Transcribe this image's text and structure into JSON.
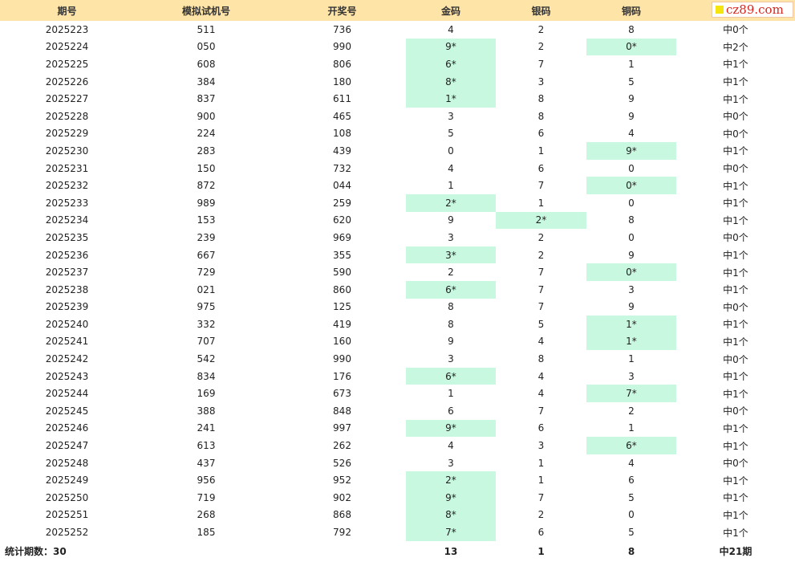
{
  "headers": {
    "period": "期号",
    "sim": "模拟试机号",
    "draw": "开奖号",
    "gold": "金码",
    "silver": "银码",
    "copper": "铜码"
  },
  "logo": {
    "text": "cz89.com"
  },
  "rows": [
    {
      "period": "2025223",
      "sim": "511",
      "draw": "736",
      "gold": "4",
      "silver": "2",
      "copper": "8",
      "result": "中0个",
      "hit": ""
    },
    {
      "period": "2025224",
      "sim": "050",
      "draw": "990",
      "gold": "9*",
      "silver": "2",
      "copper": "0*",
      "result": "中2个",
      "hit": "gc"
    },
    {
      "period": "2025225",
      "sim": "608",
      "draw": "806",
      "gold": "6*",
      "silver": "7",
      "copper": "1",
      "result": "中1个",
      "hit": "g"
    },
    {
      "period": "2025226",
      "sim": "384",
      "draw": "180",
      "gold": "8*",
      "silver": "3",
      "copper": "5",
      "result": "中1个",
      "hit": "g"
    },
    {
      "period": "2025227",
      "sim": "837",
      "draw": "611",
      "gold": "1*",
      "silver": "8",
      "copper": "9",
      "result": "中1个",
      "hit": "g"
    },
    {
      "period": "2025228",
      "sim": "900",
      "draw": "465",
      "gold": "3",
      "silver": "8",
      "copper": "9",
      "result": "中0个",
      "hit": ""
    },
    {
      "period": "2025229",
      "sim": "224",
      "draw": "108",
      "gold": "5",
      "silver": "6",
      "copper": "4",
      "result": "中0个",
      "hit": ""
    },
    {
      "period": "2025230",
      "sim": "283",
      "draw": "439",
      "gold": "0",
      "silver": "1",
      "copper": "9*",
      "result": "中1个",
      "hit": "c"
    },
    {
      "period": "2025231",
      "sim": "150",
      "draw": "732",
      "gold": "4",
      "silver": "6",
      "copper": "0",
      "result": "中0个",
      "hit": ""
    },
    {
      "period": "2025232",
      "sim": "872",
      "draw": "044",
      "gold": "1",
      "silver": "7",
      "copper": "0*",
      "result": "中1个",
      "hit": "c"
    },
    {
      "period": "2025233",
      "sim": "989",
      "draw": "259",
      "gold": "2*",
      "silver": "1",
      "copper": "0",
      "result": "中1个",
      "hit": "g"
    },
    {
      "period": "2025234",
      "sim": "153",
      "draw": "620",
      "gold": "9",
      "silver": "2*",
      "copper": "8",
      "result": "中1个",
      "hit": "s"
    },
    {
      "period": "2025235",
      "sim": "239",
      "draw": "969",
      "gold": "3",
      "silver": "2",
      "copper": "0",
      "result": "中0个",
      "hit": ""
    },
    {
      "period": "2025236",
      "sim": "667",
      "draw": "355",
      "gold": "3*",
      "silver": "2",
      "copper": "9",
      "result": "中1个",
      "hit": "g"
    },
    {
      "period": "2025237",
      "sim": "729",
      "draw": "590",
      "gold": "2",
      "silver": "7",
      "copper": "0*",
      "result": "中1个",
      "hit": "c"
    },
    {
      "period": "2025238",
      "sim": "021",
      "draw": "860",
      "gold": "6*",
      "silver": "7",
      "copper": "3",
      "result": "中1个",
      "hit": "g"
    },
    {
      "period": "2025239",
      "sim": "975",
      "draw": "125",
      "gold": "8",
      "silver": "7",
      "copper": "9",
      "result": "中0个",
      "hit": ""
    },
    {
      "period": "2025240",
      "sim": "332",
      "draw": "419",
      "gold": "8",
      "silver": "5",
      "copper": "1*",
      "result": "中1个",
      "hit": "c"
    },
    {
      "period": "2025241",
      "sim": "707",
      "draw": "160",
      "gold": "9",
      "silver": "4",
      "copper": "1*",
      "result": "中1个",
      "hit": "c"
    },
    {
      "period": "2025242",
      "sim": "542",
      "draw": "990",
      "gold": "3",
      "silver": "8",
      "copper": "1",
      "result": "中0个",
      "hit": ""
    },
    {
      "period": "2025243",
      "sim": "834",
      "draw": "176",
      "gold": "6*",
      "silver": "4",
      "copper": "3",
      "result": "中1个",
      "hit": "g"
    },
    {
      "period": "2025244",
      "sim": "169",
      "draw": "673",
      "gold": "1",
      "silver": "4",
      "copper": "7*",
      "result": "中1个",
      "hit": "c"
    },
    {
      "period": "2025245",
      "sim": "388",
      "draw": "848",
      "gold": "6",
      "silver": "7",
      "copper": "2",
      "result": "中0个",
      "hit": ""
    },
    {
      "period": "2025246",
      "sim": "241",
      "draw": "997",
      "gold": "9*",
      "silver": "6",
      "copper": "1",
      "result": "中1个",
      "hit": "g"
    },
    {
      "period": "2025247",
      "sim": "613",
      "draw": "262",
      "gold": "4",
      "silver": "3",
      "copper": "6*",
      "result": "中1个",
      "hit": "c"
    },
    {
      "period": "2025248",
      "sim": "437",
      "draw": "526",
      "gold": "3",
      "silver": "1",
      "copper": "4",
      "result": "中0个",
      "hit": ""
    },
    {
      "period": "2025249",
      "sim": "956",
      "draw": "952",
      "gold": "2*",
      "silver": "1",
      "copper": "6",
      "result": "中1个",
      "hit": "g"
    },
    {
      "period": "2025250",
      "sim": "719",
      "draw": "902",
      "gold": "9*",
      "silver": "7",
      "copper": "5",
      "result": "中1个",
      "hit": "g"
    },
    {
      "period": "2025251",
      "sim": "268",
      "draw": "868",
      "gold": "8*",
      "silver": "2",
      "copper": "0",
      "result": "中1个",
      "hit": "g"
    },
    {
      "period": "2025252",
      "sim": "185",
      "draw": "792",
      "gold": "7*",
      "silver": "6",
      "copper": "5",
      "result": "中1个",
      "hit": "g"
    }
  ],
  "footer": {
    "label": "统计期数：30",
    "gold_total": "13",
    "silver_total": "1",
    "copper_total": "8",
    "result_total": "中21期"
  },
  "colors": {
    "header_bg": "#ffe4a8",
    "hit_bg": "#c8f8df",
    "logo_text": "#d7261e",
    "logo_mark": "#f5e50f"
  }
}
